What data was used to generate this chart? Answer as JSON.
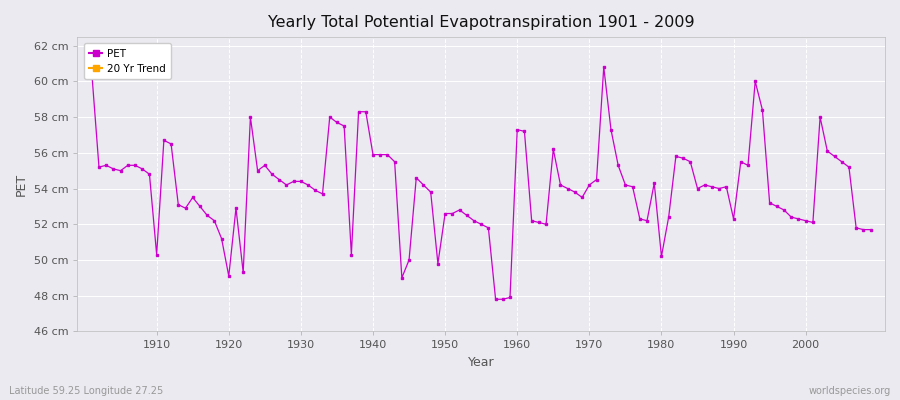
{
  "title": "Yearly Total Potential Evapotranspiration 1901 - 2009",
  "xlabel": "Year",
  "ylabel": "PET",
  "bottom_left": "Latitude 59.25 Longitude 27.25",
  "bottom_right": "worldspecies.org",
  "pet_color": "#cc00cc",
  "trend_color": "#ffa500",
  "bg_color": "#eaeaf0",
  "grid_color": "#ffffff",
  "ylim": [
    46,
    62.5
  ],
  "xlim": [
    1899,
    2011
  ],
  "ytick_vals": [
    46,
    48,
    50,
    52,
    54,
    56,
    58,
    60,
    62
  ],
  "xtick_vals": [
    1910,
    1920,
    1930,
    1940,
    1950,
    1960,
    1970,
    1980,
    1990,
    2000
  ],
  "legend_labels": [
    "PET",
    "20 Yr Trend"
  ],
  "pet_years": [
    1901,
    1902,
    1903,
    1904,
    1905,
    1906,
    1907,
    1908,
    1909,
    1910,
    1911,
    1912,
    1913,
    1914,
    1915,
    1916,
    1917,
    1918,
    1919,
    1920,
    1921,
    1922,
    1923,
    1924,
    1925,
    1926,
    1927,
    1928,
    1929,
    1930,
    1931,
    1932,
    1933,
    1934,
    1935,
    1936,
    1937,
    1938,
    1939,
    1940,
    1941,
    1942,
    1943,
    1944,
    1945,
    1946,
    1947,
    1948,
    1949,
    1950,
    1951,
    1952,
    1953,
    1954,
    1955,
    1956,
    1957,
    1958,
    1959,
    1960,
    1961,
    1962,
    1963,
    1964,
    1965,
    1966,
    1967,
    1968,
    1969,
    1970,
    1971,
    1972,
    1973,
    1974,
    1975,
    1976,
    1977,
    1978,
    1979,
    1980,
    1981,
    1982,
    1983,
    1984,
    1985,
    1986,
    1987,
    1988,
    1989,
    1990,
    1991,
    1992,
    1993,
    1994,
    1995,
    1996,
    1997,
    1998,
    1999,
    2000,
    2001,
    2002,
    2003,
    2004,
    2005,
    2006,
    2007,
    2008,
    2009
  ],
  "pet_values": [
    60.5,
    55.2,
    55.3,
    55.1,
    55.0,
    55.3,
    55.3,
    55.1,
    54.8,
    50.3,
    56.7,
    56.5,
    53.1,
    52.9,
    53.5,
    53.0,
    52.5,
    52.2,
    51.2,
    49.1,
    52.9,
    49.3,
    58.0,
    55.0,
    55.3,
    54.8,
    54.5,
    54.2,
    54.4,
    54.4,
    54.2,
    53.9,
    53.7,
    58.0,
    57.7,
    57.5,
    50.3,
    58.3,
    58.3,
    55.9,
    55.9,
    55.9,
    55.5,
    49.0,
    50.0,
    54.6,
    54.2,
    53.8,
    49.8,
    52.6,
    52.6,
    52.8,
    52.5,
    52.2,
    52.0,
    51.8,
    47.8,
    47.8,
    47.9,
    57.3,
    57.2,
    52.2,
    52.1,
    52.0,
    56.2,
    54.2,
    54.0,
    53.8,
    53.5,
    54.2,
    54.5,
    60.8,
    57.3,
    55.3,
    54.2,
    54.1,
    52.3,
    52.2,
    54.3,
    50.2,
    52.4,
    55.8,
    55.7,
    55.5,
    54.0,
    54.2,
    54.1,
    54.0,
    54.1,
    52.3,
    55.5,
    55.3,
    60.0,
    58.4,
    53.2,
    53.0,
    52.8,
    52.4,
    52.3,
    52.2,
    52.1,
    58.0,
    56.1,
    55.8,
    55.5,
    55.2,
    51.8,
    51.7,
    51.7
  ]
}
